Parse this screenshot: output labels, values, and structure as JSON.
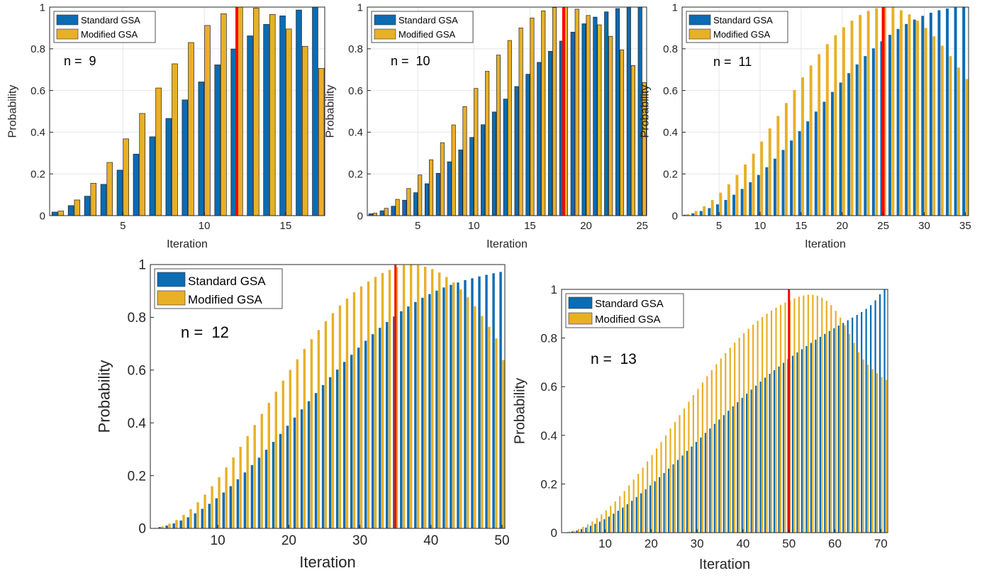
{
  "chart_data": [
    {
      "type": "bar",
      "annotation": "n =  9",
      "xlabel": "Iteration",
      "ylabel": "Probability",
      "xlim": [
        0.5,
        17.4
      ],
      "ylim": [
        0,
        1
      ],
      "xticks": [
        5,
        10,
        15
      ],
      "yticks": [
        0,
        0.2,
        0.4,
        0.6,
        0.8,
        1
      ],
      "ytick_labels": [
        "0",
        "0.2",
        "0.4",
        "0.6",
        "0.8",
        "1"
      ],
      "optimal_iteration": 12,
      "grid": true,
      "legend_position": "top-left",
      "x": [
        1,
        2,
        3,
        4,
        5,
        6,
        7,
        8,
        9,
        10,
        11,
        12,
        13,
        14,
        15,
        16,
        17
      ],
      "series": [
        {
          "name": "Standard GSA",
          "values": [
            0.017,
            0.048,
            0.093,
            0.15,
            0.218,
            0.295,
            0.378,
            0.466,
            0.555,
            0.641,
            0.723,
            0.799,
            0.862,
            0.917,
            0.958,
            0.986,
            1.0
          ]
        },
        {
          "name": "Modified GSA",
          "values": [
            0.022,
            0.075,
            0.155,
            0.255,
            0.368,
            0.49,
            0.612,
            0.728,
            0.83,
            0.912,
            0.968,
            1.0,
            0.995,
            0.965,
            0.895,
            0.812,
            0.706
          ]
        }
      ]
    },
    {
      "type": "bar",
      "annotation": "n =  10",
      "xlabel": "Iteration",
      "ylabel": "Probability",
      "xlim": [
        0.5,
        25.4
      ],
      "ylim": [
        0,
        1
      ],
      "xticks": [
        5,
        10,
        15,
        20,
        25
      ],
      "yticks": [
        0,
        0.2,
        0.4,
        0.6,
        0.8,
        1
      ],
      "ytick_labels": [
        "0",
        "0.2",
        "0.4",
        "0.6",
        "0.8",
        "1"
      ],
      "optimal_iteration": 18,
      "grid": true,
      "legend_position": "top-left",
      "x": [
        1,
        2,
        3,
        4,
        5,
        6,
        7,
        8,
        9,
        10,
        11,
        12,
        13,
        14,
        15,
        16,
        17,
        18,
        19,
        20,
        21,
        22,
        23,
        24,
        25
      ],
      "series": [
        {
          "name": "Standard GSA",
          "values": [
            0.009,
            0.023,
            0.045,
            0.074,
            0.11,
            0.153,
            0.203,
            0.258,
            0.315,
            0.375,
            0.436,
            0.497,
            0.559,
            0.619,
            0.678,
            0.735,
            0.788,
            0.837,
            0.88,
            0.92,
            0.952,
            0.977,
            0.993,
            1.0,
            1.0
          ]
        },
        {
          "name": "Modified GSA",
          "values": [
            0.012,
            0.035,
            0.078,
            0.13,
            0.195,
            0.268,
            0.35,
            0.435,
            0.523,
            0.61,
            0.692,
            0.77,
            0.84,
            0.9,
            0.948,
            0.982,
            0.998,
            1.0,
            0.99,
            0.96,
            0.915,
            0.86,
            0.795,
            0.72,
            0.638
          ]
        }
      ]
    },
    {
      "type": "bar",
      "annotation": "n =  11",
      "xlabel": "Iteration",
      "ylabel": "Probability",
      "xlim": [
        0.5,
        35.4
      ],
      "ylim": [
        0,
        1
      ],
      "xticks": [
        5,
        10,
        15,
        20,
        25,
        30,
        35
      ],
      "yticks": [
        0,
        0.2,
        0.4,
        0.6,
        0.8,
        1
      ],
      "ytick_labels": [
        "0",
        "0.2",
        "0.4",
        "0.6",
        "0.8",
        "1"
      ],
      "optimal_iteration": 25,
      "grid": true,
      "legend_position": "top-left",
      "x": [
        1,
        2,
        3,
        4,
        5,
        6,
        7,
        8,
        9,
        10,
        11,
        12,
        13,
        14,
        15,
        16,
        17,
        18,
        19,
        20,
        21,
        22,
        23,
        24,
        25,
        26,
        27,
        28,
        29,
        30,
        31,
        32,
        33,
        34,
        35
      ],
      "series": [
        {
          "name": "Standard GSA",
          "values": [
            0.004,
            0.011,
            0.022,
            0.036,
            0.054,
            0.075,
            0.1,
            0.128,
            0.16,
            0.195,
            0.232,
            0.273,
            0.315,
            0.36,
            0.405,
            0.452,
            0.499,
            0.546,
            0.593,
            0.638,
            0.683,
            0.725,
            0.765,
            0.802,
            0.836,
            0.867,
            0.895,
            0.919,
            0.94,
            0.958,
            0.973,
            0.985,
            0.993,
            0.998,
            1.0
          ]
        },
        {
          "name": "Modified GSA",
          "values": [
            0.007,
            0.022,
            0.045,
            0.075,
            0.11,
            0.15,
            0.195,
            0.245,
            0.297,
            0.355,
            0.418,
            0.478,
            0.54,
            0.602,
            0.663,
            0.72,
            0.774,
            0.822,
            0.865,
            0.903,
            0.935,
            0.962,
            0.982,
            0.995,
            1.0,
            0.998,
            0.985,
            0.965,
            0.935,
            0.9,
            0.86,
            0.815,
            0.765,
            0.71,
            0.655
          ]
        }
      ]
    },
    {
      "type": "bar",
      "annotation": "n =  12",
      "xlabel": "Iteration",
      "ylabel": "Probability",
      "xlim": [
        0.5,
        50.4
      ],
      "ylim": [
        0,
        1
      ],
      "xticks": [
        10,
        20,
        30,
        40,
        50
      ],
      "yticks": [
        0,
        0.2,
        0.4,
        0.6,
        0.8,
        1
      ],
      "ytick_labels": [
        "0",
        "0.2",
        "0.4",
        "0.6",
        "0.8",
        "1"
      ],
      "optimal_iteration": 35,
      "grid": false,
      "legend_position": "top-left",
      "x": [
        1,
        2,
        3,
        4,
        5,
        6,
        7,
        8,
        9,
        10,
        11,
        12,
        13,
        14,
        15,
        16,
        17,
        18,
        19,
        20,
        21,
        22,
        23,
        24,
        25,
        26,
        27,
        28,
        29,
        30,
        31,
        32,
        33,
        34,
        35,
        36,
        37,
        38,
        39,
        40,
        41,
        42,
        43,
        44,
        45,
        46,
        47,
        48,
        49,
        50
      ],
      "series": [
        {
          "name": "Standard GSA",
          "values": [
            0.001,
            0.005,
            0.011,
            0.019,
            0.03,
            0.042,
            0.057,
            0.074,
            0.093,
            0.114,
            0.136,
            0.16,
            0.186,
            0.212,
            0.24,
            0.268,
            0.298,
            0.328,
            0.358,
            0.389,
            0.42,
            0.451,
            0.482,
            0.513,
            0.543,
            0.573,
            0.602,
            0.631,
            0.658,
            0.685,
            0.711,
            0.736,
            0.76,
            0.782,
            0.803,
            0.823,
            0.841,
            0.858,
            0.874,
            0.888,
            0.901,
            0.913,
            0.923,
            0.932,
            0.941,
            0.948,
            0.955,
            0.961,
            0.967,
            0.972
          ]
        },
        {
          "name": "Modified GSA",
          "values": [
            0.002,
            0.008,
            0.018,
            0.032,
            0.051,
            0.073,
            0.099,
            0.128,
            0.16,
            0.194,
            0.231,
            0.269,
            0.309,
            0.35,
            0.392,
            0.434,
            0.476,
            0.518,
            0.56,
            0.601,
            0.641,
            0.68,
            0.717,
            0.752,
            0.785,
            0.816,
            0.845,
            0.871,
            0.895,
            0.917,
            0.936,
            0.953,
            0.968,
            0.98,
            0.99,
            0.998,
            1.0,
            0.998,
            0.992,
            0.983,
            0.97,
            0.953,
            0.932,
            0.906,
            0.876,
            0.842,
            0.805,
            0.764,
            0.72,
            0.638
          ]
        }
      ]
    },
    {
      "type": "bar",
      "annotation": "n =  13",
      "xlabel": "Iteration",
      "ylabel": "Probability",
      "xlim": [
        0.5,
        71.5
      ],
      "ylim": [
        0,
        1
      ],
      "xticks": [
        10,
        20,
        30,
        40,
        50,
        60,
        70
      ],
      "yticks": [
        0,
        0.2,
        0.4,
        0.6,
        0.8,
        1
      ],
      "ytick_labels": [
        "0",
        "0.2",
        "0.4",
        "0.6",
        "0.8",
        "1"
      ],
      "optimal_iteration": 50,
      "grid": false,
      "legend_position": "top-left",
      "x": [
        1,
        2,
        3,
        4,
        5,
        6,
        7,
        8,
        9,
        10,
        11,
        12,
        13,
        14,
        15,
        16,
        17,
        18,
        19,
        20,
        21,
        22,
        23,
        24,
        25,
        26,
        27,
        28,
        29,
        30,
        31,
        32,
        33,
        34,
        35,
        36,
        37,
        38,
        39,
        40,
        41,
        42,
        43,
        44,
        45,
        46,
        47,
        48,
        49,
        50,
        51,
        52,
        53,
        54,
        55,
        56,
        57,
        58,
        59,
        60,
        61,
        62,
        63,
        64,
        65,
        66,
        67,
        68,
        69,
        70,
        71
      ],
      "series": [
        {
          "name": "Standard GSA",
          "values": [
            0.001,
            0.002,
            0.005,
            0.009,
            0.015,
            0.021,
            0.028,
            0.036,
            0.045,
            0.055,
            0.066,
            0.078,
            0.09,
            0.103,
            0.117,
            0.131,
            0.146,
            0.162,
            0.178,
            0.194,
            0.211,
            0.228,
            0.245,
            0.263,
            0.281,
            0.299,
            0.317,
            0.336,
            0.354,
            0.373,
            0.391,
            0.41,
            0.428,
            0.447,
            0.465,
            0.483,
            0.501,
            0.519,
            0.536,
            0.554,
            0.571,
            0.588,
            0.604,
            0.621,
            0.637,
            0.653,
            0.668,
            0.683,
            0.698,
            0.713,
            0.727,
            0.741,
            0.754,
            0.767,
            0.78,
            0.793,
            0.805,
            0.817,
            0.829,
            0.84,
            0.851,
            0.862,
            0.873,
            0.884,
            0.895,
            0.907,
            0.92,
            0.935,
            0.955,
            0.98,
            1.0
          ]
        },
        {
          "name": "Modified GSA",
          "values": [
            0.002,
            0.004,
            0.008,
            0.015,
            0.024,
            0.034,
            0.046,
            0.06,
            0.075,
            0.092,
            0.11,
            0.129,
            0.15,
            0.171,
            0.194,
            0.218,
            0.242,
            0.267,
            0.293,
            0.319,
            0.346,
            0.373,
            0.4,
            0.428,
            0.455,
            0.483,
            0.51,
            0.538,
            0.565,
            0.591,
            0.617,
            0.643,
            0.668,
            0.692,
            0.716,
            0.738,
            0.76,
            0.781,
            0.801,
            0.82,
            0.838,
            0.855,
            0.871,
            0.886,
            0.9,
            0.913,
            0.925,
            0.936,
            0.946,
            0.955,
            0.963,
            0.97,
            0.975,
            0.978,
            0.978,
            0.974,
            0.966,
            0.953,
            0.935,
            0.912,
            0.884,
            0.852,
            0.817,
            0.78,
            0.741,
            0.712,
            0.69,
            0.672,
            0.655,
            0.64,
            0.628
          ]
        }
      ]
    }
  ],
  "colors": {
    "standard": "#0b6bb3",
    "modified": "#e8b026",
    "optimal_line": "#ff0000",
    "axis": "#262626",
    "grid": "#e6e6e6"
  }
}
